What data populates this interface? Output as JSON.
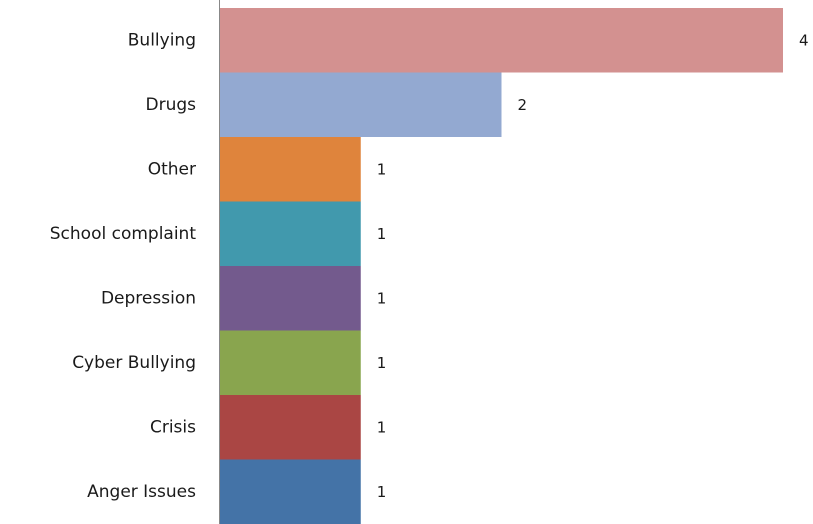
{
  "chart_data": {
    "type": "bar",
    "orientation": "horizontal",
    "title": "",
    "xlabel": "",
    "ylabel": "",
    "categories": [
      "Bullying",
      "Drugs",
      "Other",
      "School complaint",
      "Depression",
      "Cyber Bullying",
      "Crisis",
      "Anger Issues"
    ],
    "values": [
      4,
      2,
      1,
      1,
      1,
      1,
      1,
      1
    ],
    "value_labels": [
      "4",
      "2",
      "1",
      "1",
      "1",
      "1",
      "1",
      "1"
    ],
    "colors": [
      "#d39190",
      "#93a9d1",
      "#df843c",
      "#4199ad",
      "#735a8d",
      "#89a54e",
      "#aa4644",
      "#4473a7"
    ],
    "xlim": [
      0,
      4
    ],
    "grid": false,
    "legend": "none"
  }
}
